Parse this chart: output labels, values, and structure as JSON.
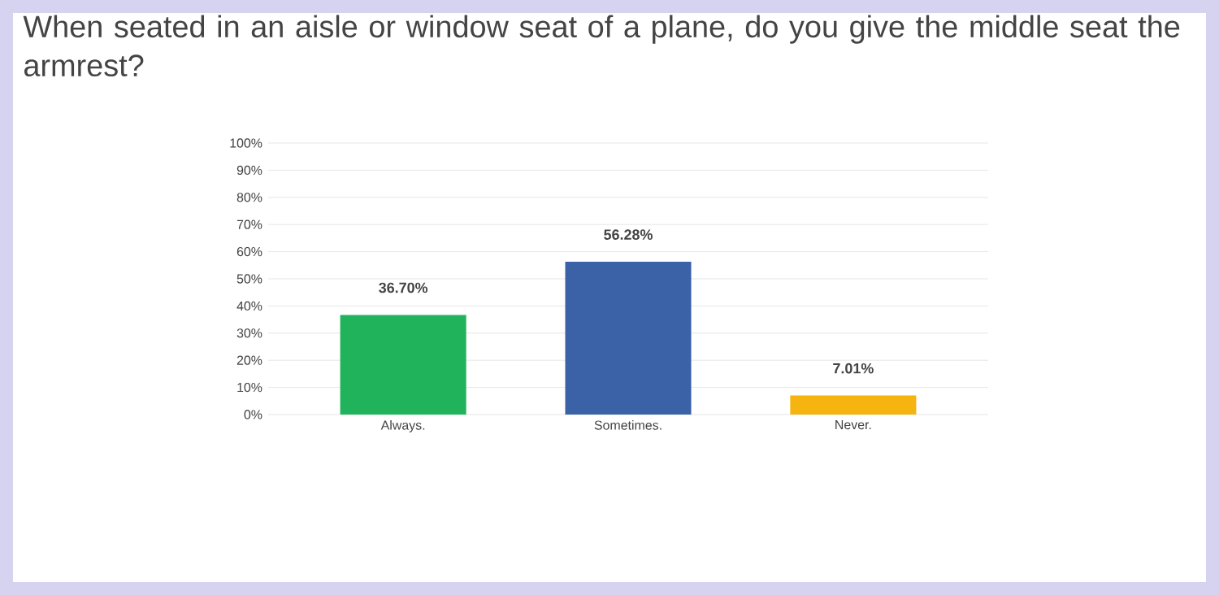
{
  "chart_data": {
    "type": "bar",
    "title": "When seated in an aisle or window seat of a plane, do you give the middle seat the armrest?",
    "categories": [
      "Always.",
      "Sometimes.",
      "Never."
    ],
    "values": [
      36.7,
      56.28,
      7.01
    ],
    "value_labels": [
      "36.70%",
      "56.28%",
      "7.01%"
    ],
    "colors": [
      "#21b35c",
      "#3b62a6",
      "#f5b40f"
    ],
    "ylim": [
      0,
      100
    ],
    "yticks": [
      {
        "value": 0,
        "label": "0%"
      },
      {
        "value": 10,
        "label": "10%"
      },
      {
        "value": 20,
        "label": "20%"
      },
      {
        "value": 30,
        "label": "30%"
      },
      {
        "value": 40,
        "label": "40%"
      },
      {
        "value": 50,
        "label": "50%"
      },
      {
        "value": 60,
        "label": "60%"
      },
      {
        "value": 70,
        "label": "70%"
      },
      {
        "value": 80,
        "label": "80%"
      },
      {
        "value": 90,
        "label": "90%"
      },
      {
        "value": 100,
        "label": "100%"
      }
    ],
    "grid": "y"
  }
}
